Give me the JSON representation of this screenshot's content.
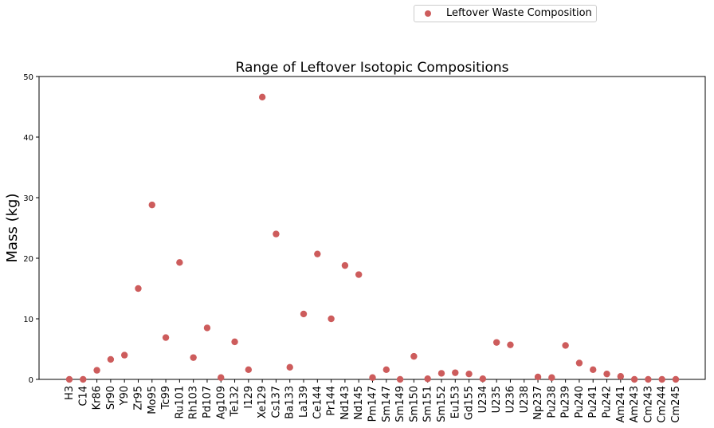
{
  "chart_data": {
    "type": "scatter",
    "title": "Range of Leftover Isotopic Compositions",
    "xlabel": "",
    "ylabel": "Mass (kg)",
    "ylim": [
      0,
      50
    ],
    "yticks": [
      0,
      10,
      20,
      30,
      40,
      50
    ],
    "grid": false,
    "legend_position": "top-right",
    "marker_color": "#cd5c5c",
    "categories": [
      "H3",
      "C14",
      "Kr86",
      "Sr90",
      "Y90",
      "Zr95",
      "Mo95",
      "Tc99",
      "Ru101",
      "Rh103",
      "Pd107",
      "Ag109",
      "Te132",
      "I129",
      "Xe129",
      "Cs137",
      "Ba133",
      "La139",
      "Ce144",
      "Pr144",
      "Nd143",
      "Nd145",
      "Pm147",
      "Sm147",
      "Sm149",
      "Sm150",
      "Sm151",
      "Sm152",
      "Eu153",
      "Gd155",
      "U234",
      "U235",
      "U236",
      "U238",
      "Np237",
      "Pu238",
      "Pu239",
      "Pu240",
      "Pu241",
      "Pu242",
      "Am241",
      "Am243",
      "Cm243",
      "Cm244",
      "Cm245"
    ],
    "series": [
      {
        "name": "Leftover Waste Composition",
        "values": [
          0.0,
          0.0,
          1.5,
          3.3,
          4.0,
          15.0,
          28.8,
          6.9,
          19.3,
          3.6,
          8.5,
          0.3,
          6.2,
          1.6,
          46.6,
          24.0,
          2.0,
          10.8,
          20.7,
          10.0,
          18.8,
          17.3,
          0.3,
          1.6,
          0.0,
          3.8,
          0.1,
          1.0,
          1.1,
          0.9,
          0.1,
          6.1,
          5.7,
          null,
          0.4,
          0.3,
          5.6,
          2.7,
          1.6,
          0.9,
          0.5,
          0.0,
          0.0,
          0.0,
          0.0
        ]
      }
    ]
  }
}
